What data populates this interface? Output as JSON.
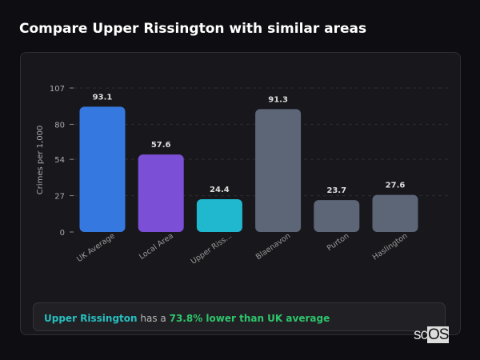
{
  "title": "Compare Upper Rissington with similar areas",
  "chart_data": {
    "type": "bar",
    "categories": [
      "UK Average",
      "Local Area",
      "Upper Riss...",
      "Blaenavon",
      "Purton",
      "Haslington"
    ],
    "values": [
      93.1,
      57.6,
      24.4,
      91.3,
      23.7,
      27.6
    ],
    "value_labels": [
      "93.1",
      "57.6",
      "24.4",
      "91.3",
      "23.7",
      "27.6"
    ],
    "colors": [
      "#3578e0",
      "#7b4fd6",
      "#1fb8cf",
      "#5c6677",
      "#5c6677",
      "#5c6677"
    ],
    "ylabel": "Crimes per 1,000",
    "yticks": [
      0,
      27,
      54,
      80,
      107
    ],
    "ylim": [
      0,
      107
    ],
    "grid": true
  },
  "info": {
    "place": "Upper Rissington",
    "middle": " has a ",
    "stat": "73.8% lower than UK average"
  },
  "logo": {
    "text": "scOS"
  }
}
